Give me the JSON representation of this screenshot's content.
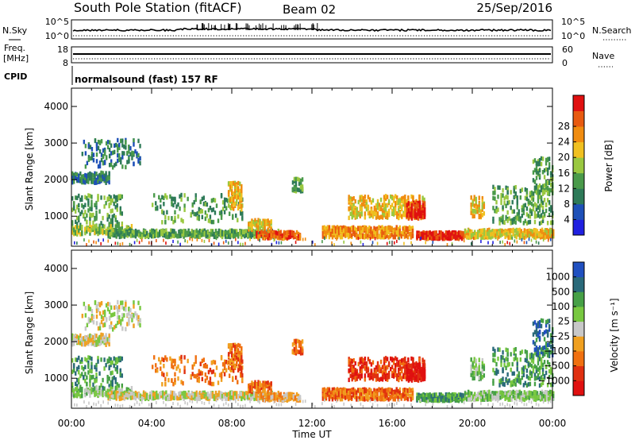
{
  "header": {
    "station": "South Pole Station (fitACF)",
    "beam": "Beam 02",
    "date": "25/Sep/2016",
    "cpid_text": "normalsound (fast) 157 RF"
  },
  "side_labels": {
    "nsky": "N.Sky",
    "freq_line1": "Freq.",
    "freq_line2": "[MHz]",
    "cpid": "CPID",
    "nsearch": "N.Search",
    "nave": "Nave"
  },
  "colors": {
    "power": [
      "#2020e0",
      "#1e50b8",
      "#2e7a58",
      "#4a9a4a",
      "#9ac840",
      "#f0c020",
      "#f08c10",
      "#e85a10",
      "#e01010"
    ],
    "velocity": [
      "#e01010",
      "#e03010",
      "#f07010",
      "#f0a020",
      "#c8c8c8",
      "#78c840",
      "#46a046",
      "#2a6a7a",
      "#2050c0"
    ]
  },
  "chart_data": [
    {
      "type": "line",
      "name": "noise-sky-search",
      "ytick_labels_left": [
        "10^5",
        "10^0"
      ],
      "ytick_labels_right": [
        "10^5",
        "10^0"
      ]
    },
    {
      "type": "line",
      "name": "frequency-nave",
      "ytick_labels_left": [
        "18",
        "8"
      ],
      "ytick_labels_right": [
        "60",
        "0"
      ],
      "ylim_left": [
        8,
        18
      ],
      "ylim_right": [
        0,
        60
      ]
    },
    {
      "type": "heatmap",
      "name": "power",
      "ylabel": "Slant Range [km]",
      "xlabel": "Time UT",
      "xlim": [
        0,
        24
      ],
      "ylim": [
        180,
        4500
      ],
      "yticks": [
        1000,
        2000,
        3000,
        4000
      ],
      "xtick_labels": [
        "00:00",
        "04:00",
        "08:00",
        "12:00",
        "16:00",
        "20:00",
        "00:00"
      ],
      "colorbar_label": "Power [dB]",
      "colorbar_ticks": [
        "4",
        "8",
        "12",
        "16",
        "20",
        "24",
        "28"
      ]
    },
    {
      "type": "heatmap",
      "name": "velocity",
      "ylabel": "Slant Range [km]",
      "xlabel": "Time UT",
      "xlim": [
        0,
        24
      ],
      "ylim": [
        180,
        4500
      ],
      "yticks": [
        1000,
        2000,
        3000,
        4000
      ],
      "xtick_labels": [
        "00:00",
        "04:00",
        "08:00",
        "12:00",
        "16:00",
        "20:00",
        "00:00"
      ],
      "colorbar_label": "Velocity [m s⁻¹]",
      "colorbar_ticks": [
        "1000",
        "500",
        "100",
        "25",
        "−25",
        "−100",
        "−500",
        "−1000"
      ]
    }
  ]
}
